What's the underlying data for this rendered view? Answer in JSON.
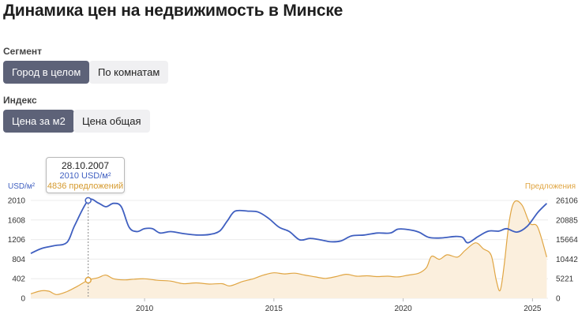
{
  "title": "Динамика цен на недвижимость в Минске",
  "segment": {
    "label": "Сегмент",
    "options": [
      "Город в целом",
      "По комнатам"
    ],
    "selected": "Город в целом"
  },
  "index": {
    "label": "Индекс",
    "options": [
      "Цена за м2",
      "Цена общая"
    ],
    "selected": "Цена за м2"
  },
  "tooltip": {
    "date": "28.10.2007",
    "price": "2010 USD/м²",
    "offers": "4836 предложений"
  },
  "colors": {
    "price": "#3f5fc0",
    "offers": "#e0a542",
    "offers_fill": "#fbefdd",
    "accent": "#5d6278"
  },
  "chart_data": {
    "type": "line",
    "y_left_label": "USD/м²",
    "y_right_label": "Предложения",
    "x_ticks": [
      2010,
      2015,
      2020,
      2025
    ],
    "x_range": [
      2005.6,
      2025.6
    ],
    "y_left_range": [
      0,
      2010
    ],
    "y_left_ticks": [
      "0",
      "402",
      "804",
      "1206",
      "1608",
      "2010"
    ],
    "y_right_range": [
      0,
      26106
    ],
    "y_right_ticks": [
      "0",
      "5221",
      "10442",
      "15664",
      "20885",
      "26106"
    ],
    "highlight": {
      "x": 2007.82,
      "price": 2010,
      "offers": 4836
    },
    "series": [
      {
        "name": "USD/м²",
        "axis": "left",
        "points": [
          [
            2005.6,
            920
          ],
          [
            2006.0,
            1020
          ],
          [
            2006.5,
            1080
          ],
          [
            2007.0,
            1150
          ],
          [
            2007.3,
            1500
          ],
          [
            2007.82,
            2010
          ],
          [
            2008.2,
            1960
          ],
          [
            2008.5,
            1880
          ],
          [
            2008.8,
            1950
          ],
          [
            2009.1,
            1880
          ],
          [
            2009.4,
            1460
          ],
          [
            2009.7,
            1370
          ],
          [
            2010.0,
            1430
          ],
          [
            2010.3,
            1430
          ],
          [
            2010.6,
            1340
          ],
          [
            2011.0,
            1370
          ],
          [
            2011.5,
            1330
          ],
          [
            2012.0,
            1300
          ],
          [
            2012.5,
            1310
          ],
          [
            2012.9,
            1380
          ],
          [
            2013.2,
            1590
          ],
          [
            2013.5,
            1790
          ],
          [
            2014.0,
            1790
          ],
          [
            2014.4,
            1770
          ],
          [
            2014.8,
            1640
          ],
          [
            2015.2,
            1460
          ],
          [
            2015.6,
            1370
          ],
          [
            2016.0,
            1200
          ],
          [
            2016.4,
            1230
          ],
          [
            2016.8,
            1200
          ],
          [
            2017.2,
            1160
          ],
          [
            2017.6,
            1180
          ],
          [
            2018.0,
            1280
          ],
          [
            2018.5,
            1300
          ],
          [
            2019.0,
            1340
          ],
          [
            2019.5,
            1340
          ],
          [
            2019.8,
            1420
          ],
          [
            2020.2,
            1410
          ],
          [
            2020.6,
            1360
          ],
          [
            2021.0,
            1250
          ],
          [
            2021.5,
            1240
          ],
          [
            2022.0,
            1270
          ],
          [
            2022.3,
            1250
          ],
          [
            2022.5,
            1140
          ],
          [
            2022.9,
            1270
          ],
          [
            2023.3,
            1380
          ],
          [
            2023.7,
            1380
          ],
          [
            2024.0,
            1430
          ],
          [
            2024.4,
            1360
          ],
          [
            2024.8,
            1480
          ],
          [
            2025.2,
            1760
          ],
          [
            2025.55,
            1950
          ]
        ]
      },
      {
        "name": "Предложения",
        "axis": "right",
        "points": [
          [
            2005.6,
            1200
          ],
          [
            2006.0,
            2000
          ],
          [
            2006.3,
            1900
          ],
          [
            2006.6,
            1000
          ],
          [
            2007.0,
            1800
          ],
          [
            2007.4,
            3200
          ],
          [
            2007.82,
            4836
          ],
          [
            2008.2,
            5500
          ],
          [
            2008.5,
            6200
          ],
          [
            2008.8,
            5200
          ],
          [
            2009.2,
            4900
          ],
          [
            2009.6,
            5100
          ],
          [
            2010.0,
            5200
          ],
          [
            2010.5,
            4800
          ],
          [
            2011.0,
            4600
          ],
          [
            2011.5,
            3900
          ],
          [
            2012.0,
            4100
          ],
          [
            2012.5,
            3800
          ],
          [
            2013.0,
            3900
          ],
          [
            2013.3,
            3300
          ],
          [
            2013.8,
            4500
          ],
          [
            2014.2,
            5200
          ],
          [
            2014.6,
            6200
          ],
          [
            2015.0,
            6800
          ],
          [
            2015.4,
            6500
          ],
          [
            2015.8,
            6700
          ],
          [
            2016.2,
            6200
          ],
          [
            2016.6,
            5700
          ],
          [
            2017.0,
            5300
          ],
          [
            2017.4,
            5800
          ],
          [
            2017.8,
            6400
          ],
          [
            2018.2,
            5900
          ],
          [
            2018.6,
            6000
          ],
          [
            2019.0,
            5800
          ],
          [
            2019.4,
            5900
          ],
          [
            2019.8,
            5700
          ],
          [
            2020.2,
            6200
          ],
          [
            2020.6,
            6700
          ],
          [
            2020.9,
            8200
          ],
          [
            2021.1,
            11200
          ],
          [
            2021.4,
            10400
          ],
          [
            2021.7,
            11600
          ],
          [
            2022.1,
            11000
          ],
          [
            2022.4,
            12800
          ],
          [
            2022.8,
            14800
          ],
          [
            2023.1,
            13200
          ],
          [
            2023.4,
            11500
          ],
          [
            2023.6,
            4800
          ],
          [
            2023.75,
            2100
          ],
          [
            2023.9,
            8500
          ],
          [
            2024.1,
            20500
          ],
          [
            2024.3,
            25700
          ],
          [
            2024.6,
            24800
          ],
          [
            2024.9,
            20000
          ],
          [
            2025.2,
            19000
          ],
          [
            2025.55,
            11000
          ]
        ]
      }
    ]
  }
}
